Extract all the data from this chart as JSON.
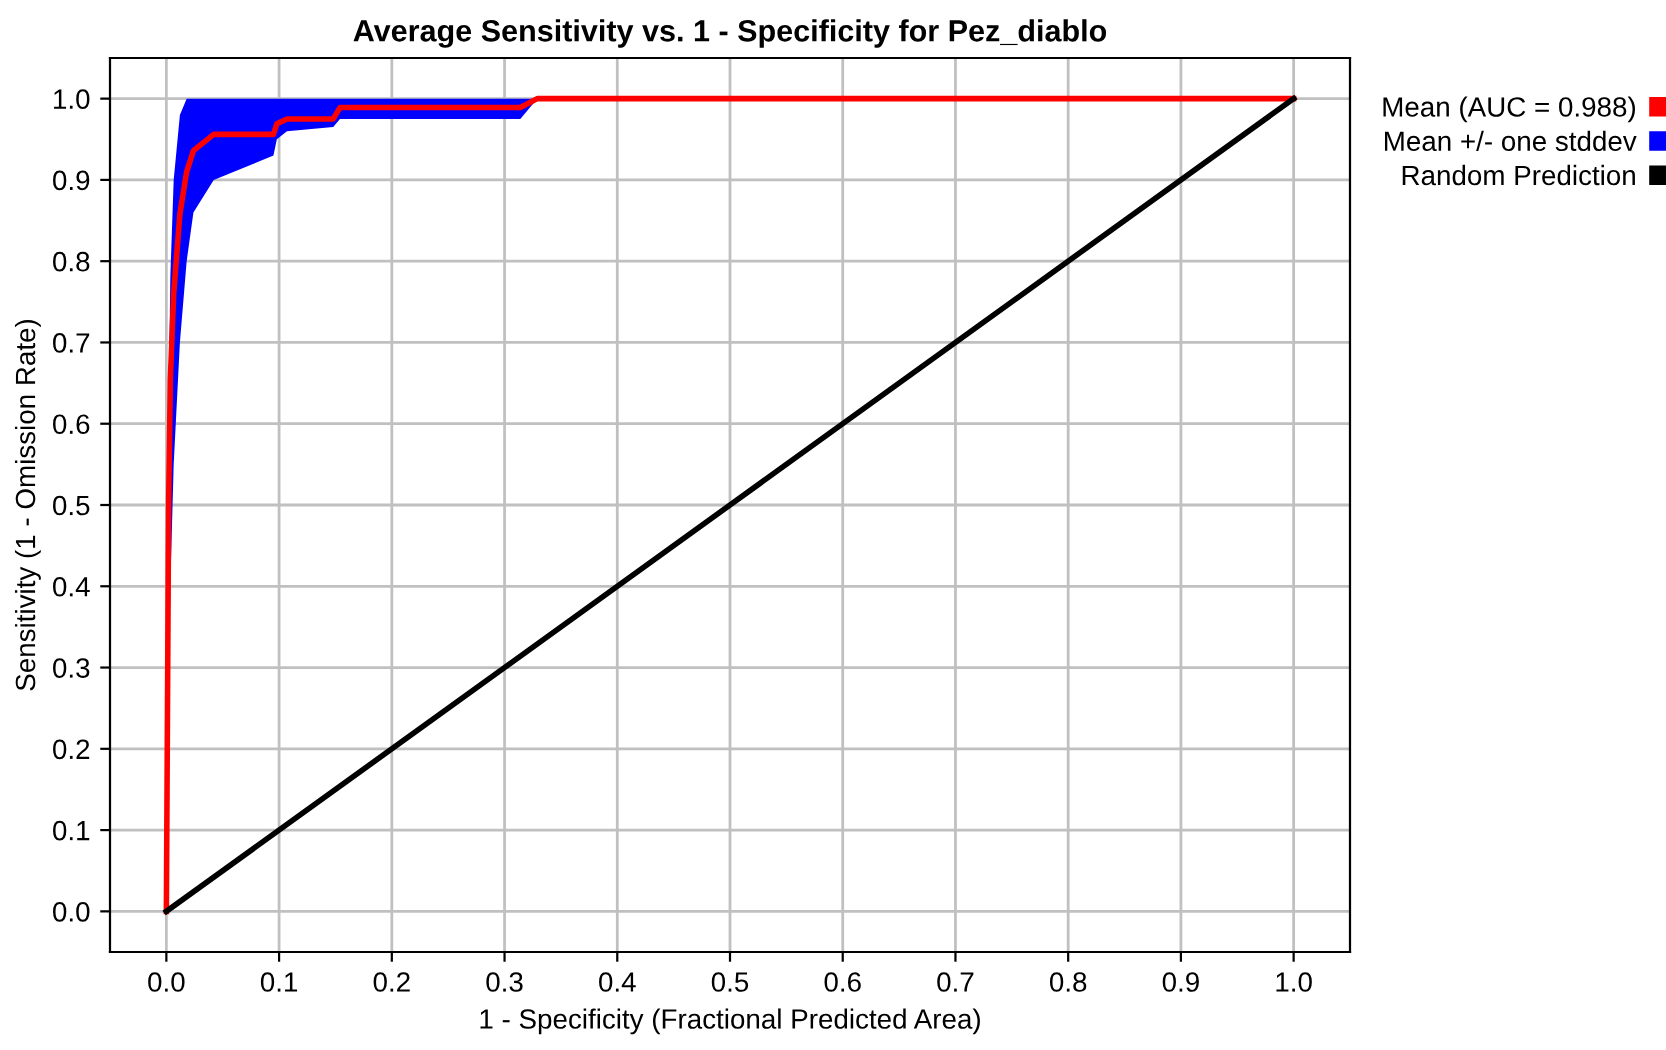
{
  "chart_data": {
    "type": "line",
    "title": "Average Sensitivity vs. 1 - Specificity for Pez_diablo",
    "xlabel": "1 - Specificity (Fractional Predicted Area)",
    "ylabel": "Sensitivity (1 - Omission Rate)",
    "xlim": [
      -0.05,
      1.05
    ],
    "ylim": [
      -0.05,
      1.05
    ],
    "xticks": [
      {
        "value": 0,
        "label": "0.0"
      },
      {
        "value": 0.1,
        "label": "0.1"
      },
      {
        "value": 0.2,
        "label": "0.2"
      },
      {
        "value": 0.3,
        "label": "0.3"
      },
      {
        "value": 0.4,
        "label": "0.4"
      },
      {
        "value": 0.5,
        "label": "0.5"
      },
      {
        "value": 0.6,
        "label": "0.6"
      },
      {
        "value": 0.7,
        "label": "0.7"
      },
      {
        "value": 0.8,
        "label": "0.8"
      },
      {
        "value": 0.9,
        "label": "0.9"
      },
      {
        "value": 1,
        "label": "1.0"
      }
    ],
    "yticks": [
      {
        "value": 0,
        "label": "0.0"
      },
      {
        "value": 0.1,
        "label": "0.1"
      },
      {
        "value": 0.2,
        "label": "0.2"
      },
      {
        "value": 0.3,
        "label": "0.3"
      },
      {
        "value": 0.4,
        "label": "0.4"
      },
      {
        "value": 0.5,
        "label": "0.5"
      },
      {
        "value": 0.6,
        "label": "0.6"
      },
      {
        "value": 0.7,
        "label": "0.7"
      },
      {
        "value": 0.8,
        "label": "0.8"
      },
      {
        "value": 0.9,
        "label": "0.9"
      },
      {
        "value": 1,
        "label": "1.0"
      }
    ],
    "grid": true,
    "legend": "top right",
    "marker": "none",
    "line_style": "solid",
    "series": [
      {
        "name": "Mean (AUC = 0.988)",
        "color": "#ff0000",
        "x": [
          0,
          0.002,
          0.0035,
          0.0065,
          0.012,
          0.018,
          0.024,
          0.042,
          0.095,
          0.098,
          0.107,
          0.148,
          0.154,
          0.314,
          0.329,
          1.0
        ],
        "values": [
          0,
          0.5,
          0.654,
          0.76,
          0.858,
          0.91,
          0.936,
          0.956,
          0.956,
          0.969,
          0.975,
          0.975,
          0.989,
          0.989,
          1.0,
          1.0
        ],
        "lower": [
          0,
          0.24,
          0.4,
          0.55,
          0.7,
          0.8,
          0.86,
          0.9,
          0.93,
          0.95,
          0.96,
          0.965,
          0.975,
          0.975,
          1.0,
          1.0
        ],
        "upper": [
          0,
          0.62,
          0.78,
          0.9,
          0.98,
          1.0,
          1.0,
          1.0,
          1.0,
          1.0,
          1.0,
          1.0,
          1.0,
          1.0,
          1.0,
          1.0
        ]
      },
      {
        "name": "Mean +/- one stddev",
        "type": "area",
        "color": "#0000ff"
      },
      {
        "name": "Random Prediction",
        "color": "#000000",
        "x": [
          0,
          1
        ],
        "values": [
          0,
          1
        ]
      }
    ]
  }
}
